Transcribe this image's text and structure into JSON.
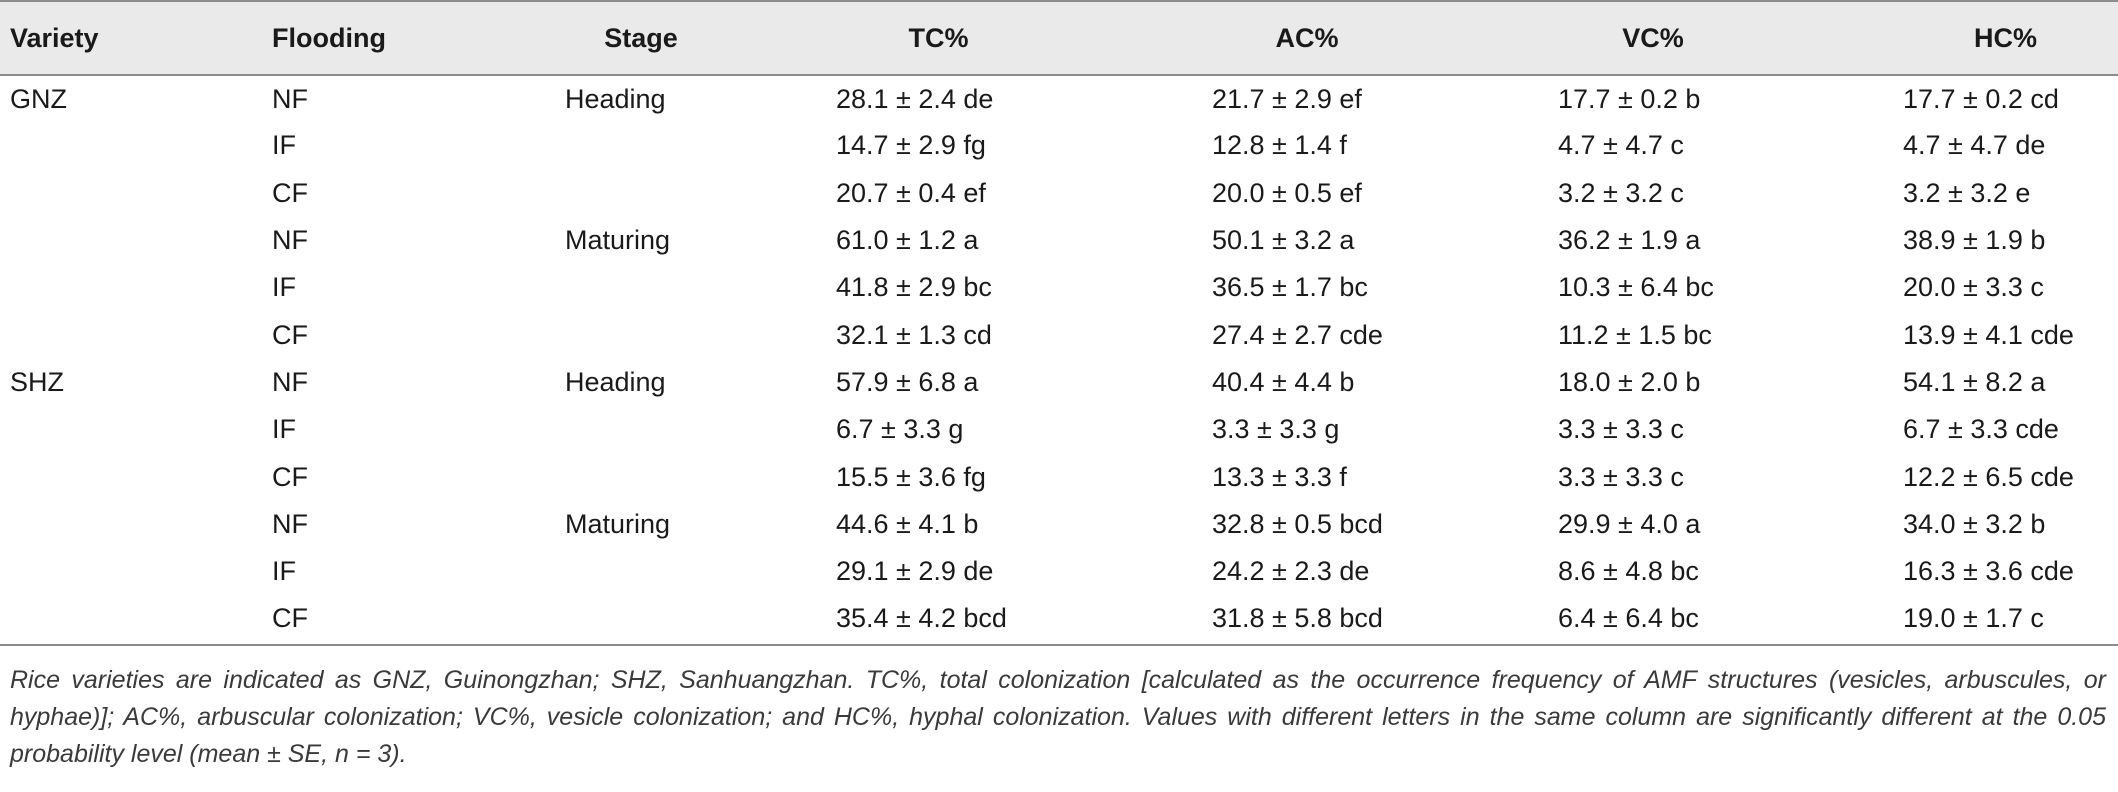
{
  "table": {
    "headers": [
      "Variety",
      "Flooding",
      "Stage",
      "TC%",
      "AC%",
      "VC%",
      "HC%"
    ],
    "rows": [
      {
        "variety": "GNZ",
        "flooding": "NF",
        "stage": "Heading",
        "tc": "28.1 ± 2.4 de",
        "ac": "21.7 ± 2.9 ef",
        "vc": "17.7 ± 0.2 b",
        "hc": "17.7 ± 0.2 cd"
      },
      {
        "variety": "",
        "flooding": "IF",
        "stage": "",
        "tc": "14.7 ± 2.9 fg",
        "ac": "12.8 ± 1.4 f",
        "vc": "4.7 ± 4.7 c",
        "hc": "4.7 ± 4.7 de"
      },
      {
        "variety": "",
        "flooding": "CF",
        "stage": "",
        "tc": "20.7 ± 0.4 ef",
        "ac": "20.0 ± 0.5 ef",
        "vc": "3.2 ± 3.2 c",
        "hc": "3.2 ± 3.2 e"
      },
      {
        "variety": "",
        "flooding": "NF",
        "stage": "Maturing",
        "tc": "61.0 ± 1.2 a",
        "ac": "50.1 ± 3.2 a",
        "vc": "36.2 ± 1.9 a",
        "hc": "38.9 ± 1.9 b"
      },
      {
        "variety": "",
        "flooding": "IF",
        "stage": "",
        "tc": "41.8 ± 2.9 bc",
        "ac": "36.5 ± 1.7 bc",
        "vc": "10.3 ± 6.4 bc",
        "hc": "20.0 ± 3.3 c"
      },
      {
        "variety": "",
        "flooding": "CF",
        "stage": "",
        "tc": "32.1 ± 1.3 cd",
        "ac": "27.4 ± 2.7 cde",
        "vc": "11.2 ± 1.5 bc",
        "hc": "13.9 ± 4.1 cde"
      },
      {
        "variety": "SHZ",
        "flooding": "NF",
        "stage": "Heading",
        "tc": "57.9 ± 6.8 a",
        "ac": "40.4 ± 4.4 b",
        "vc": "18.0 ± 2.0 b",
        "hc": "54.1 ± 8.2 a"
      },
      {
        "variety": "",
        "flooding": "IF",
        "stage": "",
        "tc": "6.7 ± 3.3 g",
        "ac": "3.3 ± 3.3 g",
        "vc": "3.3 ± 3.3 c",
        "hc": "6.7 ± 3.3 cde"
      },
      {
        "variety": "",
        "flooding": "CF",
        "stage": "",
        "tc": "15.5 ± 3.6 fg",
        "ac": "13.3 ± 3.3 f",
        "vc": "3.3 ± 3.3 c",
        "hc": "12.2 ± 6.5 cde"
      },
      {
        "variety": "",
        "flooding": "NF",
        "stage": "Maturing",
        "tc": "44.6 ± 4.1 b",
        "ac": "32.8 ± 0.5 bcd",
        "vc": "29.9 ± 4.0 a",
        "hc": "34.0 ± 3.2 b"
      },
      {
        "variety": "",
        "flooding": "IF",
        "stage": "",
        "tc": "29.1 ± 2.9 de",
        "ac": "24.2 ± 2.3 de",
        "vc": "8.6 ± 4.8 bc",
        "hc": "16.3 ± 3.6 cde"
      },
      {
        "variety": "",
        "flooding": "CF",
        "stage": "",
        "tc": "35.4 ± 4.2 bcd",
        "ac": "31.8 ± 5.8 bcd",
        "vc": "6.4 ± 6.4 bc",
        "hc": "19.0 ± 1.7 c"
      }
    ]
  },
  "footnote": "Rice varieties are indicated as GNZ, Guinongzhan; SHZ, Sanhuangzhan. TC%, total colonization [calculated as the occurrence frequency of AMF structures (vesicles, arbuscules, or hyphae)]; AC%, arbuscular colonization; VC%, vesicle colonization; and HC%, hyphal colonization. Values with different letters in the same column are significantly different at the 0.05 probability level (mean ± SE, n = 3)."
}
